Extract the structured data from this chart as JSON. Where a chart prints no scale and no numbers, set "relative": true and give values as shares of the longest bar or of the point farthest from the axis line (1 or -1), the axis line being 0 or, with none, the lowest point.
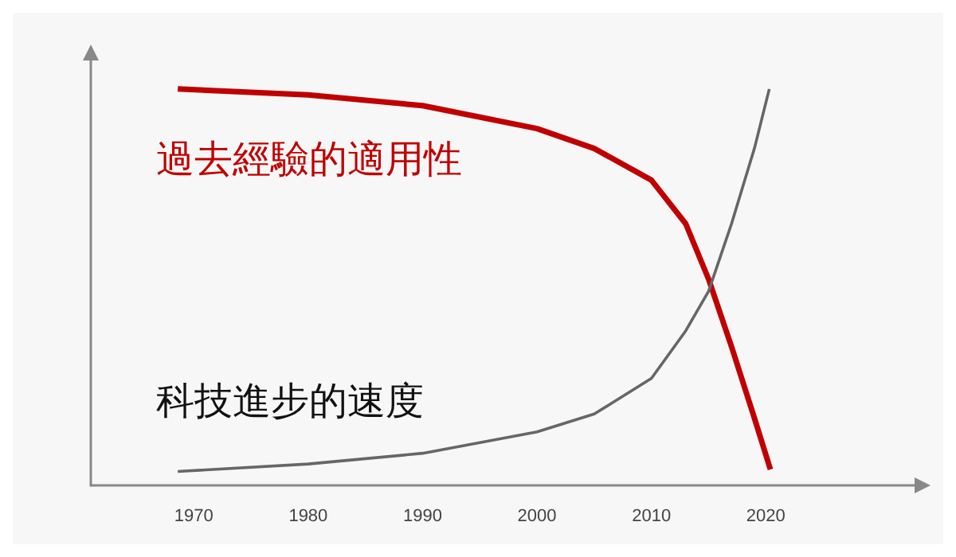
{
  "chart_data": {
    "type": "line",
    "relative": true,
    "marker": "none",
    "grid": false,
    "legend": false,
    "xlim": [
      1961,
      2033
    ],
    "xticks": [
      1970,
      1980,
      1990,
      2000,
      2010,
      2020
    ],
    "series": [
      {
        "name": "過去經驗的適用性",
        "color": "#c00000",
        "x": [
          1968.6,
          1980,
          1990,
          2000,
          2005,
          2010,
          2013,
          2015,
          2017,
          2019,
          2020.4
        ],
        "values": [
          1.0,
          0.985,
          0.958,
          0.9,
          0.85,
          0.77,
          0.66,
          0.52,
          0.35,
          0.17,
          0.04
        ]
      },
      {
        "name": "科技進步的速度",
        "color": "#666666",
        "x": [
          1968.6,
          1980,
          1990,
          2000,
          2005,
          2010,
          2013,
          2015,
          2017,
          2019,
          2020.3
        ],
        "values": [
          0.035,
          0.054,
          0.081,
          0.135,
          0.18,
          0.27,
          0.39,
          0.49,
          0.66,
          0.85,
          1.0
        ]
      }
    ]
  }
}
